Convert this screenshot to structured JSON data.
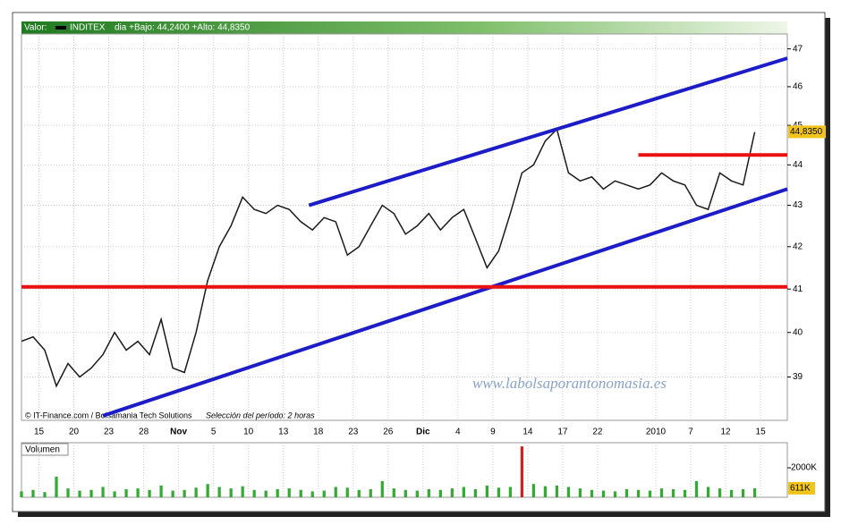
{
  "chart_data": {
    "type": "line",
    "header": {
      "label": "Valor:",
      "symbol": "INDITEX",
      "range": "dia +Bajo: 44,2400 +Alto: 44,8350"
    },
    "credit": "© IT-Finance.com / Bolsamania Tech Solutions",
    "period": "Selección del período: 2 horas",
    "watermark": "www.labolsaporantonomasia.es",
    "volume_label": "Volumen",
    "log_y": true,
    "grid": true,
    "xlim": [
      0,
      65.8
    ],
    "xticks": [
      {
        "value": 1.5,
        "label": "15"
      },
      {
        "value": 4.5,
        "label": "20"
      },
      {
        "value": 7.5,
        "label": "23"
      },
      {
        "value": 10.5,
        "label": "28"
      },
      {
        "value": 13.5,
        "label": "Nov"
      },
      {
        "value": 16.5,
        "label": "5"
      },
      {
        "value": 19.5,
        "label": "10"
      },
      {
        "value": 22.5,
        "label": "13"
      },
      {
        "value": 25.5,
        "label": "18"
      },
      {
        "value": 28.5,
        "label": "23"
      },
      {
        "value": 31.5,
        "label": "26"
      },
      {
        "value": 34.5,
        "label": "Dic"
      },
      {
        "value": 37.5,
        "label": "4"
      },
      {
        "value": 40.5,
        "label": "9"
      },
      {
        "value": 43.5,
        "label": "14"
      },
      {
        "value": 46.5,
        "label": "17"
      },
      {
        "value": 49.5,
        "label": "22"
      },
      {
        "value": 54.5,
        "label": "2010"
      },
      {
        "value": 57.5,
        "label": "7"
      },
      {
        "value": 60.5,
        "label": "12"
      },
      {
        "value": 63.5,
        "label": "15"
      }
    ],
    "ylim": [
      38.05,
      47.4
    ],
    "yticks": [
      39,
      40,
      41,
      42,
      43,
      44,
      45,
      46,
      47
    ],
    "current_price": {
      "value": 44.835,
      "label": "44,8350"
    },
    "series": [
      {
        "name": "INDITEX",
        "color": "#1a1a1a",
        "values": [
          39.8,
          39.9,
          39.6,
          38.8,
          39.3,
          39.0,
          39.2,
          39.5,
          40.0,
          39.6,
          39.8,
          39.5,
          40.3,
          39.2,
          39.1,
          40.0,
          41.2,
          42.0,
          42.5,
          43.2,
          42.9,
          42.8,
          43.0,
          42.9,
          42.6,
          42.4,
          42.7,
          42.6,
          41.8,
          42.0,
          42.5,
          43.0,
          42.8,
          42.3,
          42.5,
          42.8,
          42.4,
          42.7,
          42.9,
          42.2,
          41.5,
          41.9,
          42.8,
          43.8,
          44.0,
          44.6,
          44.9,
          43.8,
          43.6,
          43.7,
          43.4,
          43.6,
          43.5,
          43.4,
          43.5,
          43.8,
          43.6,
          43.5,
          43.0,
          42.9,
          43.8,
          43.6,
          43.5,
          44.83
        ]
      }
    ],
    "lines": [
      {
        "color": "#1c1cc8",
        "from": [
          24.7,
          43.0
        ],
        "to": [
          65.8,
          46.75
        ]
      },
      {
        "color": "#1c1cc8",
        "from": [
          7.0,
          38.15
        ],
        "to": [
          65.8,
          43.4
        ]
      },
      {
        "color": "#e81010",
        "from": [
          0,
          41.05
        ],
        "to": [
          65.8,
          41.05
        ]
      },
      {
        "color": "#e81010",
        "from": [
          53.0,
          44.25
        ],
        "to": [
          65.8,
          44.25
        ]
      }
    ],
    "volume": {
      "color": "#33aa33",
      "ylim": [
        0,
        3700
      ],
      "yticks": [
        {
          "value": 2000,
          "label": "2000K"
        }
      ],
      "current": {
        "value": 611,
        "label": "611K"
      },
      "values": [
        400,
        500,
        350,
        1400,
        600,
        450,
        500,
        700,
        400,
        550,
        600,
        500,
        800,
        450,
        500,
        650,
        900,
        700,
        600,
        750,
        500,
        450,
        550,
        600,
        500,
        400,
        450,
        700,
        650,
        500,
        550,
        1100,
        600,
        500,
        450,
        550,
        500,
        600,
        700,
        550,
        800,
        650,
        700,
        3450,
        900,
        750,
        800,
        700,
        600,
        500,
        450,
        400,
        550,
        500,
        450,
        600,
        550,
        500,
        1100,
        700,
        600,
        500,
        550,
        611
      ]
    }
  }
}
